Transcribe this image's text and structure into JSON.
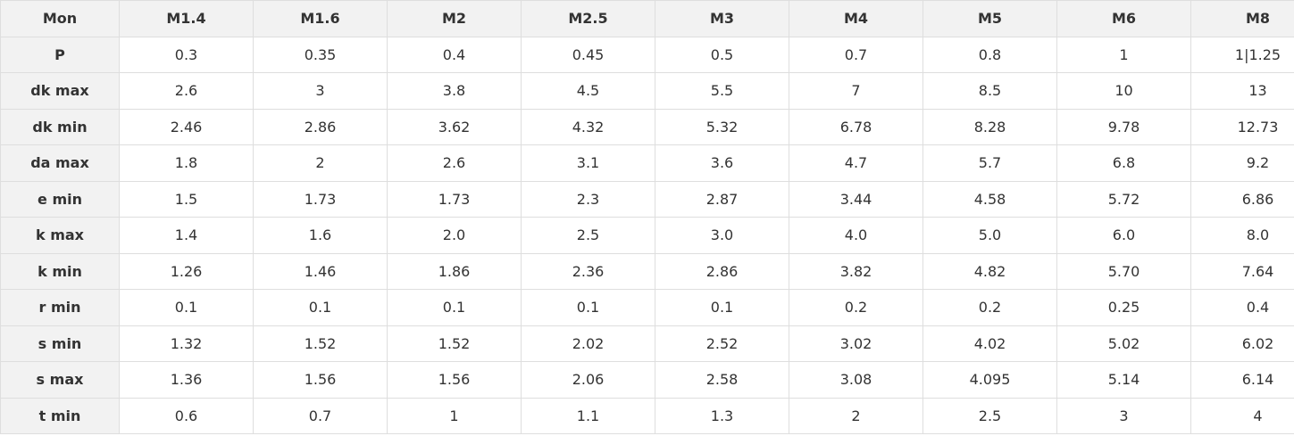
{
  "table": {
    "header": [
      "Mon",
      "M1.4",
      "M1.6",
      "M2",
      "M2.5",
      "M3",
      "M4",
      "M5",
      "M6",
      "M8"
    ],
    "rows": [
      [
        "P",
        "0.3",
        "0.35",
        "0.4",
        "0.45",
        "0.5",
        "0.7",
        "0.8",
        "1",
        "1|1.25"
      ],
      [
        "dk max",
        "2.6",
        "3",
        "3.8",
        "4.5",
        "5.5",
        "7",
        "8.5",
        "10",
        "13"
      ],
      [
        "dk min",
        "2.46",
        "2.86",
        "3.62",
        "4.32",
        "5.32",
        "6.78",
        "8.28",
        "9.78",
        "12.73"
      ],
      [
        "da max",
        "1.8",
        "2",
        "2.6",
        "3.1",
        "3.6",
        "4.7",
        "5.7",
        "6.8",
        "9.2"
      ],
      [
        "e min",
        "1.5",
        "1.73",
        "1.73",
        "2.3",
        "2.87",
        "3.44",
        "4.58",
        "5.72",
        "6.86"
      ],
      [
        "k max",
        "1.4",
        "1.6",
        "2.0",
        "2.5",
        "3.0",
        "4.0",
        "5.0",
        "6.0",
        "8.0"
      ],
      [
        "k min",
        "1.26",
        "1.46",
        "1.86",
        "2.36",
        "2.86",
        "3.82",
        "4.82",
        "5.70",
        "7.64"
      ],
      [
        "r min",
        "0.1",
        "0.1",
        "0.1",
        "0.1",
        "0.1",
        "0.2",
        "0.2",
        "0.25",
        "0.4"
      ],
      [
        "s min",
        "1.32",
        "1.52",
        "1.52",
        "2.02",
        "2.52",
        "3.02",
        "4.02",
        "5.02",
        "6.02"
      ],
      [
        "s max",
        "1.36",
        "1.56",
        "1.56",
        "2.06",
        "2.58",
        "3.08",
        "4.095",
        "5.14",
        "6.14"
      ],
      [
        "t min",
        "0.6",
        "0.7",
        "1",
        "1.1",
        "1.3",
        "2",
        "2.5",
        "3",
        "4"
      ]
    ]
  }
}
